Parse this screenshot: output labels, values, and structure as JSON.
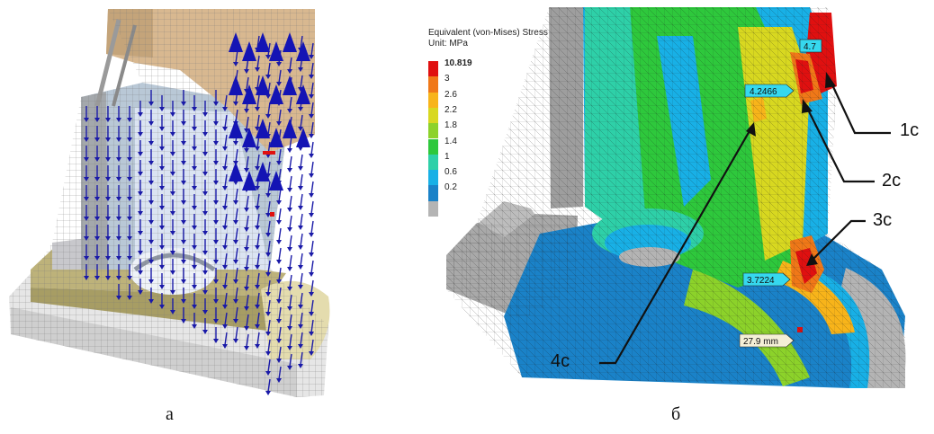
{
  "legend": {
    "title": "Equivalent (von-Mises) Stress",
    "unit": "Unit: MPa",
    "entries": [
      {
        "label": "10.819",
        "color": "#e01010"
      },
      {
        "label": "3",
        "color": "#f07818"
      },
      {
        "label": "2.6",
        "color": "#f8b41a"
      },
      {
        "label": "2.2",
        "color": "#d8d820"
      },
      {
        "label": "1.8",
        "color": "#8cd22a"
      },
      {
        "label": "1.4",
        "color": "#2ec83c"
      },
      {
        "label": "1",
        "color": "#2ed0a8"
      },
      {
        "label": "0.6",
        "color": "#18b0e6"
      },
      {
        "label": "0.2",
        "color": "#1a82c8"
      },
      {
        "label": "",
        "color": "#b4b4b4"
      }
    ]
  },
  "probes": {
    "p1": "4.7",
    "p2": "4.2466",
    "p3": "3.7224",
    "dim": "27.9 mm"
  },
  "callouts": {
    "c1": "1c",
    "c2": "2c",
    "c3": "3c",
    "c4": "4c"
  },
  "captions": {
    "left": "а",
    "right": "б"
  },
  "colors": {
    "arrow_blue": "#1a1aa8",
    "mesh_gray": "#a8a8a8",
    "model_tan": "#d8b890",
    "model_olive": "#bdb27a",
    "probe_cyan": "#36d8ee",
    "stress_red": "#e01010"
  }
}
